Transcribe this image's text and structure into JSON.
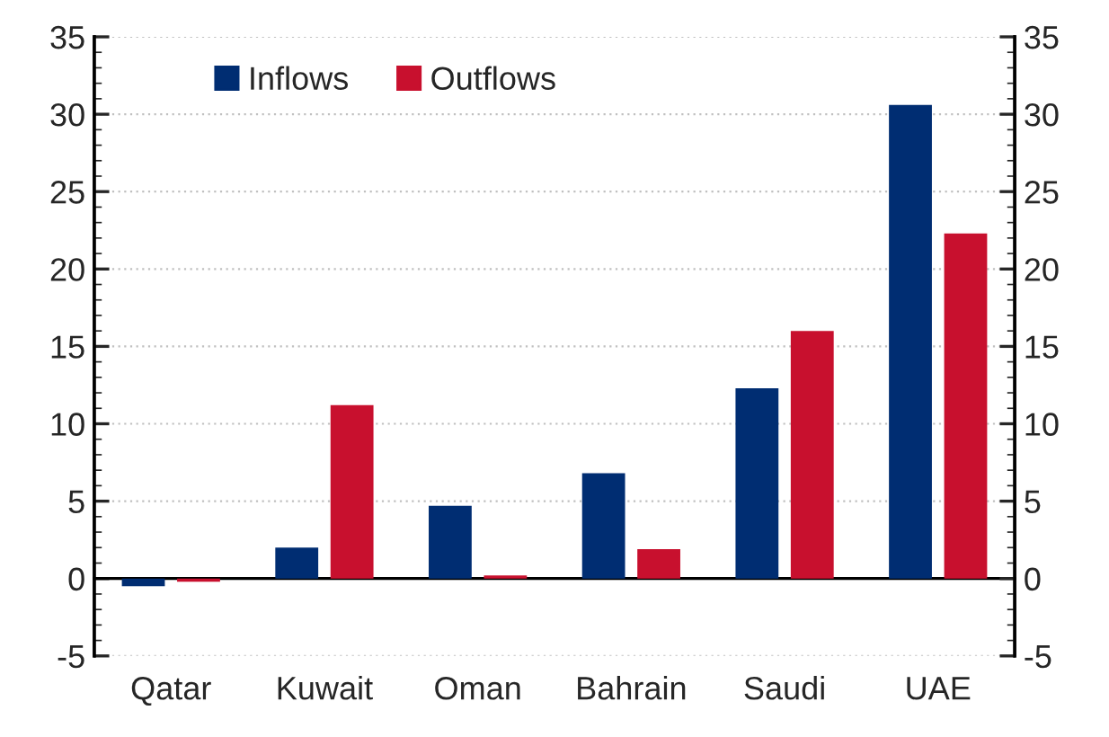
{
  "chart_data": {
    "type": "bar",
    "categories": [
      "Qatar",
      "Kuwait",
      "Oman",
      "Bahrain",
      "Saudi",
      "UAE"
    ],
    "series": [
      {
        "name": "Inflows",
        "color": "#002d72",
        "values": [
          -0.5,
          2.0,
          4.7,
          6.8,
          12.3,
          30.6
        ]
      },
      {
        "name": "Outflows",
        "color": "#c8102e",
        "values": [
          -0.2,
          11.2,
          0.2,
          1.9,
          16.0,
          22.3
        ]
      }
    ],
    "ylim": [
      -5,
      35
    ],
    "yticks": [
      -5,
      0,
      5,
      10,
      15,
      20,
      25,
      30,
      35
    ],
    "y2lim": [
      -5,
      35
    ],
    "y2ticks": [
      -5,
      0,
      5,
      10,
      15,
      20,
      25,
      30,
      35
    ],
    "grid": "y",
    "legend": "top left"
  }
}
